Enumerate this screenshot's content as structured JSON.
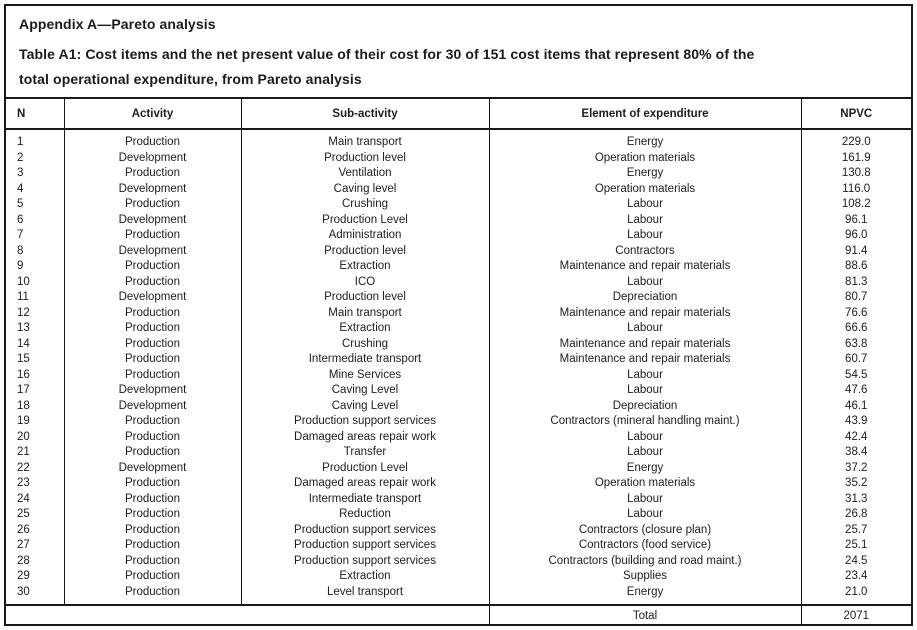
{
  "header": {
    "appendix_title": "Appendix A—Pareto analysis",
    "caption_lines": [
      "Table A1: Cost items and the net present value of their cost for 30 of 151 cost items that represent 80% of the",
      "total operational expenditure, from Pareto analysis"
    ]
  },
  "table": {
    "columns": [
      "N",
      "Activity",
      "Sub-activity",
      "Element of expenditure",
      "NPVC"
    ],
    "rows": [
      {
        "n": "1",
        "activity": "Production",
        "sub": "Main transport",
        "element": "Energy",
        "npvc": "229.0"
      },
      {
        "n": "2",
        "activity": "Development",
        "sub": "Production level",
        "element": "Operation materials",
        "npvc": "161.9"
      },
      {
        "n": "3",
        "activity": "Production",
        "sub": "Ventilation",
        "element": "Energy",
        "npvc": "130.8"
      },
      {
        "n": "4",
        "activity": "Development",
        "sub": "Caving level",
        "element": "Operation materials",
        "npvc": "116.0"
      },
      {
        "n": "5",
        "activity": "Production",
        "sub": "Crushing",
        "element": "Labour",
        "npvc": "108.2"
      },
      {
        "n": "6",
        "activity": "Development",
        "sub": "Production Level",
        "element": "Labour",
        "npvc": "96.1"
      },
      {
        "n": "7",
        "activity": "Production",
        "sub": "Administration",
        "element": "Labour",
        "npvc": "96.0"
      },
      {
        "n": "8",
        "activity": "Development",
        "sub": "Production level",
        "element": "Contractors",
        "npvc": "91.4"
      },
      {
        "n": "9",
        "activity": "Production",
        "sub": "Extraction",
        "element": "Maintenance and repair materials",
        "npvc": "88.6"
      },
      {
        "n": "10",
        "activity": "Production",
        "sub": "ICO",
        "element": "Labour",
        "npvc": "81.3"
      },
      {
        "n": "11",
        "activity": "Development",
        "sub": "Production level",
        "element": "Depreciation",
        "npvc": "80.7"
      },
      {
        "n": "12",
        "activity": "Production",
        "sub": "Main transport",
        "element": "Maintenance and repair materials",
        "npvc": "76.6"
      },
      {
        "n": "13",
        "activity": "Production",
        "sub": "Extraction",
        "element": "Labour",
        "npvc": "66.6"
      },
      {
        "n": "14",
        "activity": "Production",
        "sub": "Crushing",
        "element": "Maintenance and repair materials",
        "npvc": "63.8"
      },
      {
        "n": "15",
        "activity": "Production",
        "sub": "Intermediate transport",
        "element": "Maintenance and repair materials",
        "npvc": "60.7"
      },
      {
        "n": "16",
        "activity": "Production",
        "sub": "Mine Services",
        "element": "Labour",
        "npvc": "54.5"
      },
      {
        "n": "17",
        "activity": "Development",
        "sub": "Caving Level",
        "element": "Labour",
        "npvc": "47.6"
      },
      {
        "n": "18",
        "activity": "Development",
        "sub": "Caving Level",
        "element": "Depreciation",
        "npvc": "46.1"
      },
      {
        "n": "19",
        "activity": "Production",
        "sub": "Production support services",
        "element": "Contractors (mineral handling maint.)",
        "npvc": "43.9"
      },
      {
        "n": "20",
        "activity": "Production",
        "sub": "Damaged areas repair work",
        "element": "Labour",
        "npvc": "42.4"
      },
      {
        "n": "21",
        "activity": "Production",
        "sub": "Transfer",
        "element": "Labour",
        "npvc": "38.4"
      },
      {
        "n": "22",
        "activity": "Development",
        "sub": "Production Level",
        "element": "Energy",
        "npvc": "37.2"
      },
      {
        "n": "23",
        "activity": "Production",
        "sub": "Damaged areas repair work",
        "element": "Operation materials",
        "npvc": "35.2"
      },
      {
        "n": "24",
        "activity": "Production",
        "sub": "Intermediate transport",
        "element": "Labour",
        "npvc": "31.3"
      },
      {
        "n": "25",
        "activity": "Production",
        "sub": "Reduction",
        "element": "Labour",
        "npvc": "26.8"
      },
      {
        "n": "26",
        "activity": "Production",
        "sub": "Production support services",
        "element": "Contractors (closure plan)",
        "npvc": "25.7"
      },
      {
        "n": "27",
        "activity": "Production",
        "sub": "Production support services",
        "element": "Contractors (food service)",
        "npvc": "25.1"
      },
      {
        "n": "28",
        "activity": "Production",
        "sub": "Production support services",
        "element": "Contractors (building and road maint.)",
        "npvc": "24.5"
      },
      {
        "n": "29",
        "activity": "Production",
        "sub": "Extraction",
        "element": "Supplies",
        "npvc": "23.4"
      },
      {
        "n": "30",
        "activity": "Production",
        "sub": "Level transport",
        "element": "Energy",
        "npvc": "21.0"
      }
    ],
    "total_label": "Total",
    "total_value": "2071"
  },
  "colors": {
    "border": "#1a1a1a",
    "text": "#1d1d1d",
    "background": "#ffffff"
  }
}
